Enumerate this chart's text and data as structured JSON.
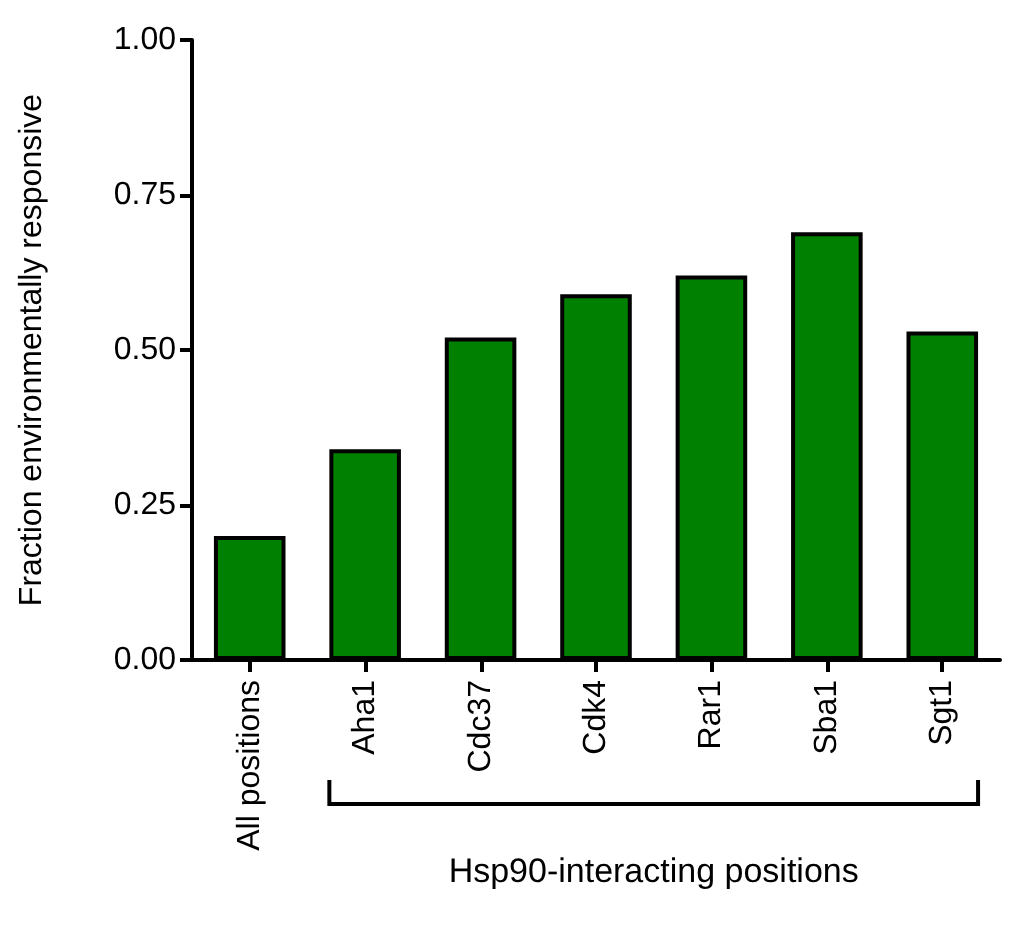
{
  "chart_data": {
    "type": "bar",
    "ylabel": "Fraction environmentally responsive",
    "categories": [
      "All positions",
      "Aha1",
      "Cdc37",
      "Cdk4",
      "Rar1",
      "Sba1",
      "Sgt1"
    ],
    "values": [
      0.2,
      0.34,
      0.52,
      0.59,
      0.62,
      0.69,
      0.53
    ],
    "color": "#008000",
    "ylim": [
      0,
      1
    ],
    "yticks": [
      {
        "value": 0,
        "label": "0.00"
      },
      {
        "value": 0.25,
        "label": "0.25"
      },
      {
        "value": 0.5,
        "label": "0.50"
      },
      {
        "value": 0.75,
        "label": "0.75"
      },
      {
        "value": 1,
        "label": "1.00"
      }
    ],
    "grid": false,
    "annotations": [
      "Hsp90-interacting positions"
    ]
  }
}
